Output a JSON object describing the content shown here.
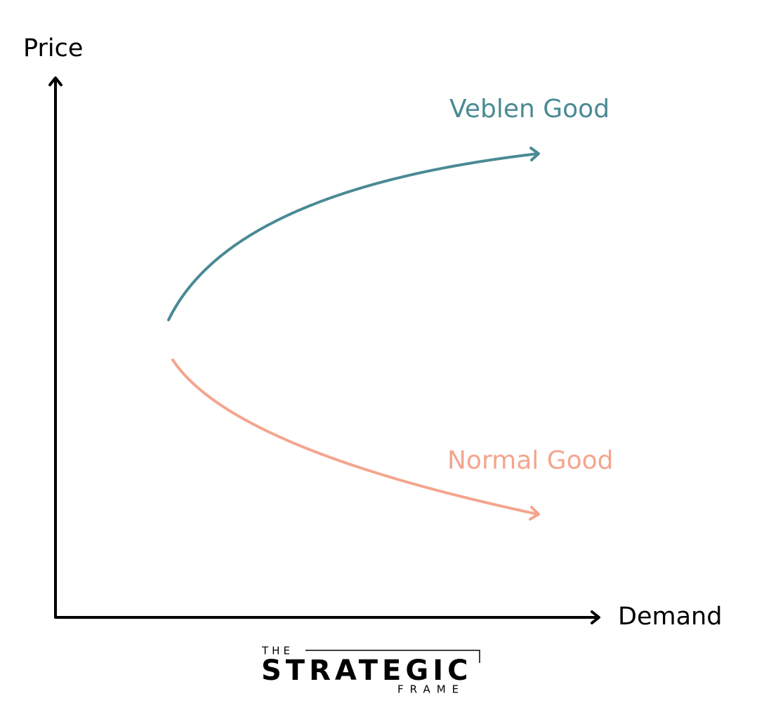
{
  "axes": {
    "y_label": "Price",
    "x_label": "Demand"
  },
  "curves": [
    {
      "label": "Veblen Good"
    },
    {
      "label": "Normal Good"
    }
  ],
  "logo": {
    "top": "THE",
    "main": "STRATEGIC",
    "bottom": "FRAME"
  }
}
